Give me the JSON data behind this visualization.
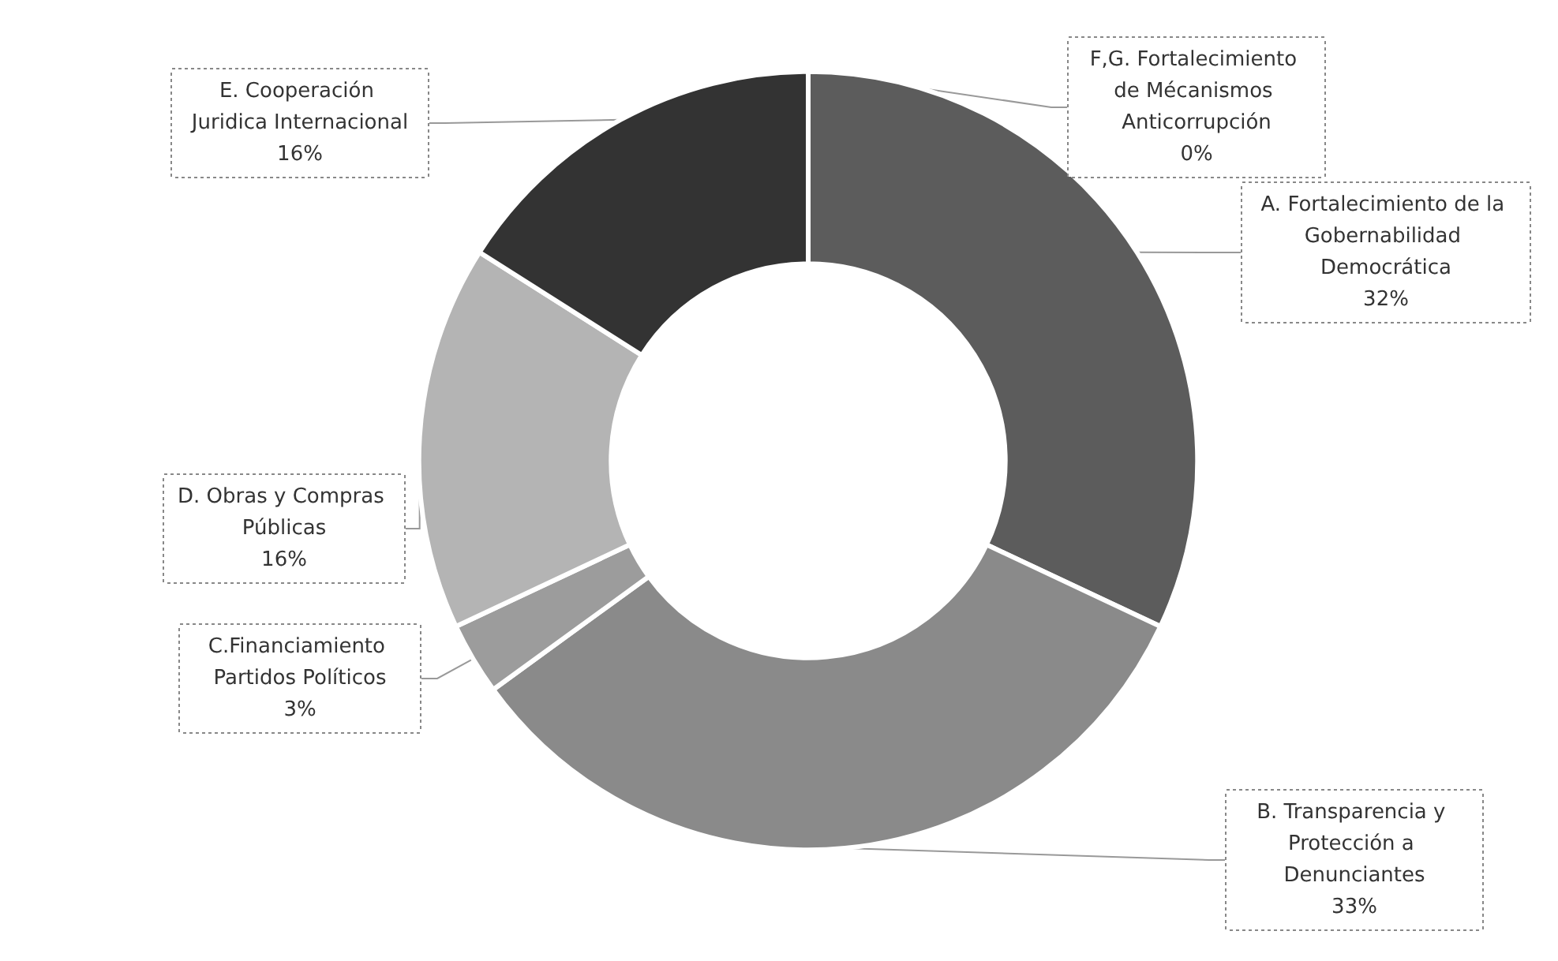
{
  "chart_data": {
    "type": "donut",
    "categories": [
      "F,G. Fortalecimiento de Mécanismos Anticorrupción",
      "A. Fortalecimiento de la Gobernabilidad Democrática",
      "B. Transparencia y Protección a Denunciantes",
      "C.Financiamiento Partidos Políticos",
      "D. Obras y Compras Públicas",
      "E. Cooperación Juridica Internacional"
    ],
    "values": [
      0,
      32,
      33,
      3,
      16,
      16
    ],
    "value_labels": [
      "0%",
      "32%",
      "33%",
      "3%",
      "16%",
      "16%"
    ],
    "colors": [
      "#4a4a4a",
      "#5c5c5c",
      "#8a8a8a",
      "#9c9c9c",
      "#b4b4b4",
      "#333333"
    ]
  }
}
